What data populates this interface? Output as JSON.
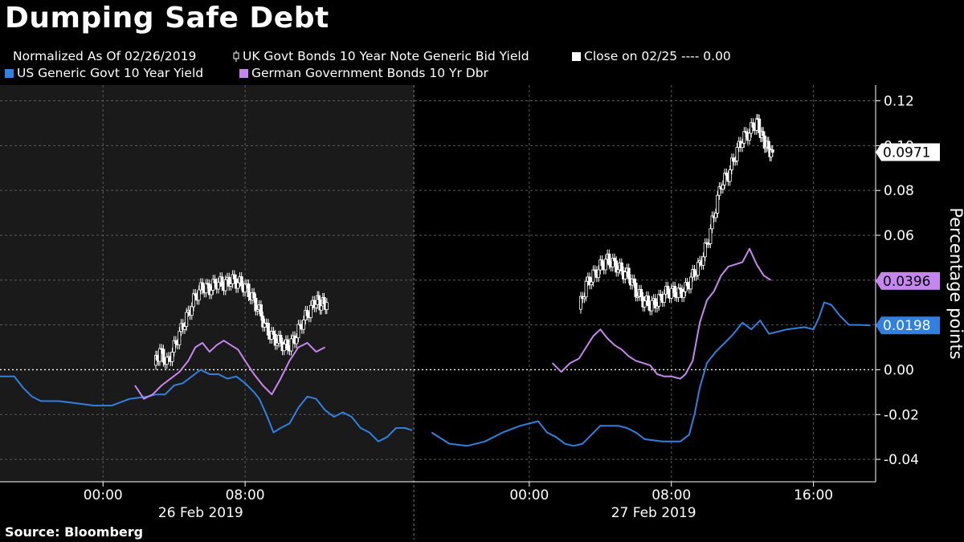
{
  "title": "Dumping Safe Debt",
  "legend": {
    "items": [
      {
        "label": "Normalized As Of 02/26/2019",
        "color": "",
        "icon": "none"
      },
      {
        "label": "UK Govt Bonds 10 Year Note Generic Bid Yield",
        "color": "#ffffff",
        "icon": "candlestick-icon"
      },
      {
        "label": "Close on 02/25 ---- 0.00",
        "color": "#ffffff",
        "icon": "square"
      },
      {
        "label": "US Generic Govt 10 Year Yield",
        "color": "#2f80e0",
        "icon": "square"
      },
      {
        "label": "German Government Bonds 10 Yr Dbr",
        "color": "#c686f0",
        "icon": "square"
      }
    ]
  },
  "source": "Source: Bloomberg",
  "chart_data": {
    "type": "line",
    "ylabel": "Percentage points",
    "ylim": [
      -0.05,
      0.127
    ],
    "yticks": [
      0.12,
      0.1,
      0.08,
      0.06,
      0.04,
      0.02,
      0.0,
      -0.02,
      -0.04
    ],
    "ytick_labels": [
      "0.12",
      "0.10",
      "0.08",
      "0.06",
      "0.04",
      "0.02",
      "0.00",
      "-0.02",
      "-0.04"
    ],
    "xticks": [
      {
        "hour": 0,
        "label": "00:00"
      },
      {
        "hour": 8,
        "label": "08:00"
      },
      {
        "hour": 24,
        "label": "00:00"
      },
      {
        "hour": 32,
        "label": "08:00"
      },
      {
        "hour": 40,
        "label": "16:00"
      }
    ],
    "date_labels": [
      {
        "hour": 5.5,
        "label": "26 Feb 2019"
      },
      {
        "hour": 31,
        "label": "27 Feb 2019"
      }
    ],
    "sessions": [
      {
        "start_hour": -5.8,
        "end_hour": 17.5,
        "background": "#1a1a1a"
      },
      {
        "start_hour": 17.5,
        "end_hour": 42.5,
        "background": "#000000"
      }
    ],
    "zero_line": {
      "value": 0.0,
      "color": "#ffffff",
      "style": "dotted"
    },
    "grid": true,
    "series": [
      {
        "name": "UK Govt Bonds 10 Year Note Generic Bid Yield",
        "type": "candlestick",
        "color": "#ffffff",
        "last_value": "0.0971",
        "segments": [
          [
            [
              2.9,
              0.002
            ],
            [
              3.2,
              0.008
            ],
            [
              3.6,
              0.003
            ],
            [
              4.0,
              0.01
            ],
            [
              4.4,
              0.018
            ],
            [
              4.8,
              0.025
            ],
            [
              5.2,
              0.033
            ],
            [
              5.6,
              0.037
            ],
            [
              6.0,
              0.036
            ],
            [
              6.4,
              0.039
            ],
            [
              6.8,
              0.038
            ],
            [
              7.2,
              0.04
            ],
            [
              7.6,
              0.039
            ],
            [
              8.0,
              0.037
            ],
            [
              8.4,
              0.032
            ],
            [
              8.8,
              0.026
            ],
            [
              9.2,
              0.018
            ],
            [
              9.6,
              0.014
            ],
            [
              10.0,
              0.012
            ],
            [
              10.4,
              0.01
            ],
            [
              10.8,
              0.014
            ],
            [
              11.2,
              0.021
            ],
            [
              11.6,
              0.026
            ],
            [
              12.0,
              0.031
            ],
            [
              12.3,
              0.029
            ],
            [
              12.6,
              0.03
            ]
          ],
          [
            [
              26.8,
              0.027
            ],
            [
              27.2,
              0.038
            ],
            [
              27.6,
              0.042
            ],
            [
              28.0,
              0.046
            ],
            [
              28.4,
              0.049
            ],
            [
              28.8,
              0.047
            ],
            [
              29.2,
              0.044
            ],
            [
              29.6,
              0.042
            ],
            [
              30.0,
              0.035
            ],
            [
              30.4,
              0.031
            ],
            [
              30.8,
              0.029
            ],
            [
              31.2,
              0.03
            ],
            [
              31.6,
              0.034
            ],
            [
              32.0,
              0.035
            ],
            [
              32.4,
              0.034
            ],
            [
              32.8,
              0.036
            ],
            [
              33.2,
              0.042
            ],
            [
              33.6,
              0.047
            ],
            [
              34.0,
              0.056
            ],
            [
              34.4,
              0.069
            ],
            [
              34.8,
              0.083
            ],
            [
              35.2,
              0.087
            ],
            [
              35.6,
              0.096
            ],
            [
              36.0,
              0.103
            ],
            [
              36.4,
              0.106
            ],
            [
              36.8,
              0.111
            ],
            [
              37.1,
              0.104
            ],
            [
              37.4,
              0.099
            ],
            [
              37.7,
              0.097
            ]
          ]
        ]
      },
      {
        "name": "US Generic Govt 10 Year Yield",
        "type": "line",
        "color": "#2f80e0",
        "last_value": "0.0198",
        "segments": [
          [
            [
              -5.8,
              -0.003
            ],
            [
              -5.0,
              -0.003
            ],
            [
              -4.5,
              -0.008
            ],
            [
              -4.0,
              -0.012
            ],
            [
              -3.5,
              -0.014
            ],
            [
              -2.5,
              -0.014
            ],
            [
              -1.5,
              -0.015
            ],
            [
              -0.5,
              -0.016
            ],
            [
              0.5,
              -0.016
            ],
            [
              1.5,
              -0.013
            ],
            [
              2.5,
              -0.012
            ],
            [
              3.0,
              -0.011
            ],
            [
              3.5,
              -0.011
            ],
            [
              4.0,
              -0.007
            ],
            [
              4.5,
              -0.006
            ],
            [
              5.0,
              -0.003
            ],
            [
              5.5,
              0.0
            ],
            [
              6.0,
              -0.002
            ],
            [
              6.5,
              -0.002
            ],
            [
              7.0,
              -0.004
            ],
            [
              7.5,
              -0.003
            ],
            [
              8.0,
              -0.006
            ],
            [
              8.5,
              -0.01
            ],
            [
              8.8,
              -0.013
            ],
            [
              9.2,
              -0.02
            ],
            [
              9.6,
              -0.028
            ],
            [
              10.0,
              -0.026
            ],
            [
              10.5,
              -0.024
            ],
            [
              11.0,
              -0.017
            ],
            [
              11.5,
              -0.012
            ],
            [
              12.0,
              -0.013
            ],
            [
              12.5,
              -0.018
            ],
            [
              13.0,
              -0.021
            ],
            [
              13.5,
              -0.019
            ],
            [
              14.0,
              -0.021
            ],
            [
              14.5,
              -0.026
            ],
            [
              15.0,
              -0.028
            ],
            [
              15.5,
              -0.032
            ],
            [
              16.0,
              -0.03
            ],
            [
              16.5,
              -0.026
            ],
            [
              17.0,
              -0.026
            ],
            [
              17.4,
              -0.027
            ]
          ],
          [
            [
              18.5,
              -0.028
            ],
            [
              19.5,
              -0.033
            ],
            [
              20.5,
              -0.034
            ],
            [
              21.5,
              -0.032
            ],
            [
              22.5,
              -0.028
            ],
            [
              23.5,
              -0.025
            ],
            [
              24.5,
              -0.023
            ],
            [
              25.0,
              -0.028
            ],
            [
              25.5,
              -0.03
            ],
            [
              26.0,
              -0.033
            ],
            [
              26.5,
              -0.034
            ],
            [
              27.0,
              -0.033
            ],
            [
              27.5,
              -0.029
            ],
            [
              28.0,
              -0.025
            ],
            [
              29.0,
              -0.025
            ],
            [
              29.5,
              -0.026
            ],
            [
              30.0,
              -0.028
            ],
            [
              30.5,
              -0.031
            ],
            [
              31.5,
              -0.032
            ],
            [
              32.5,
              -0.032
            ],
            [
              33.0,
              -0.029
            ],
            [
              33.3,
              -0.02
            ],
            [
              33.6,
              -0.008
            ],
            [
              34.0,
              0.003
            ],
            [
              34.5,
              0.008
            ],
            [
              35.0,
              0.012
            ],
            [
              35.5,
              0.016
            ],
            [
              36.0,
              0.021
            ],
            [
              36.5,
              0.018
            ],
            [
              37.0,
              0.022
            ],
            [
              37.5,
              0.016
            ],
            [
              38.0,
              0.017
            ],
            [
              38.5,
              0.018
            ],
            [
              39.5,
              0.019
            ],
            [
              40.0,
              0.018
            ],
            [
              40.3,
              0.023
            ],
            [
              40.6,
              0.03
            ],
            [
              41.0,
              0.029
            ],
            [
              41.5,
              0.024
            ],
            [
              42.0,
              0.02
            ],
            [
              42.6,
              0.02
            ],
            [
              43.2,
              0.0198
            ]
          ]
        ]
      },
      {
        "name": "German Government Bonds 10 Yr Dbr",
        "type": "line",
        "color": "#c686f0",
        "last_value": "0.0396",
        "segments": [
          [
            [
              1.8,
              -0.007
            ],
            [
              2.3,
              -0.013
            ],
            [
              2.8,
              -0.011
            ],
            [
              3.3,
              -0.007
            ],
            [
              3.8,
              -0.004
            ],
            [
              4.3,
              -0.001
            ],
            [
              4.8,
              0.004
            ],
            [
              5.2,
              0.01
            ],
            [
              5.6,
              0.012
            ],
            [
              6.0,
              0.008
            ],
            [
              6.4,
              0.011
            ],
            [
              6.8,
              0.013
            ],
            [
              7.2,
              0.011
            ],
            [
              7.6,
              0.009
            ],
            [
              8.0,
              0.004
            ],
            [
              8.5,
              -0.002
            ],
            [
              9.0,
              -0.007
            ],
            [
              9.5,
              -0.011
            ],
            [
              10.0,
              -0.004
            ],
            [
              10.5,
              0.004
            ],
            [
              11.0,
              0.01
            ],
            [
              11.5,
              0.012
            ],
            [
              12.0,
              0.008
            ],
            [
              12.5,
              0.01
            ]
          ],
          [
            [
              25.3,
              0.003
            ],
            [
              25.8,
              -0.001
            ],
            [
              26.3,
              0.003
            ],
            [
              26.8,
              0.005
            ],
            [
              27.2,
              0.01
            ],
            [
              27.6,
              0.015
            ],
            [
              28.0,
              0.018
            ],
            [
              28.4,
              0.014
            ],
            [
              28.8,
              0.011
            ],
            [
              29.2,
              0.009
            ],
            [
              29.6,
              0.006
            ],
            [
              30.0,
              0.004
            ],
            [
              30.4,
              0.003
            ],
            [
              30.8,
              0.002
            ],
            [
              31.2,
              -0.002
            ],
            [
              31.6,
              -0.003
            ],
            [
              32.0,
              -0.003
            ],
            [
              32.5,
              -0.004
            ],
            [
              32.8,
              -0.002
            ],
            [
              33.2,
              0.004
            ],
            [
              33.6,
              0.021
            ],
            [
              34.0,
              0.031
            ],
            [
              34.4,
              0.035
            ],
            [
              34.8,
              0.042
            ],
            [
              35.2,
              0.046
            ],
            [
              35.6,
              0.047
            ],
            [
              36.0,
              0.048
            ],
            [
              36.4,
              0.054
            ],
            [
              36.8,
              0.047
            ],
            [
              37.2,
              0.042
            ],
            [
              37.6,
              0.04
            ]
          ]
        ]
      }
    ]
  }
}
